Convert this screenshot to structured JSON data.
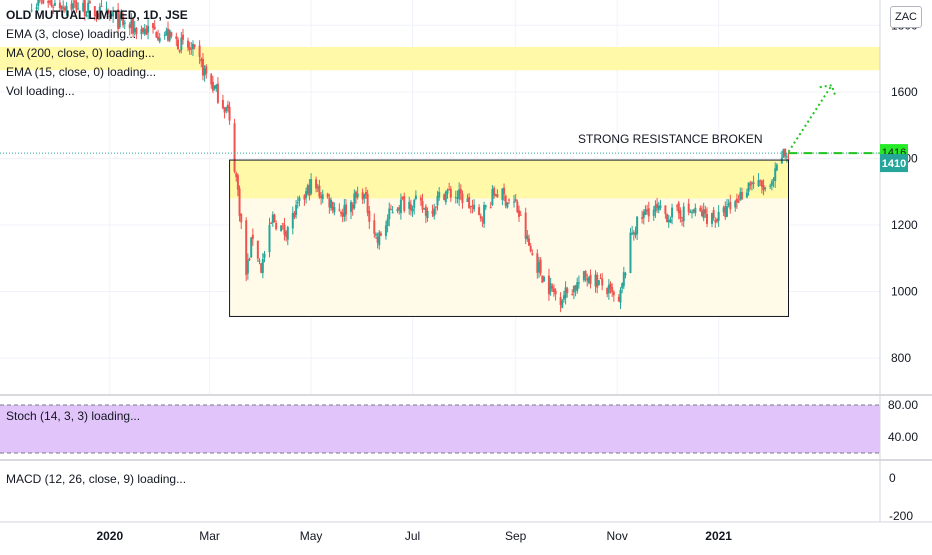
{
  "header": {
    "symbol_title": "OLD MUTUAL LIMITED, 1D, JSE",
    "currency": "ZAC"
  },
  "indicators": {
    "ema3": "EMA (3, close) loading...",
    "ma200": "MA (200, close, 0) loading...",
    "ema15": "EMA (15, close, 0) loading...",
    "vol": "Vol loading...",
    "stoch": "Stoch (14, 3, 3) loading...",
    "macd": "MACD (12, 26, close, 9) loading..."
  },
  "annotation": {
    "resistance_text": "STRONG RESISTANCE BROKEN"
  },
  "price_labels": {
    "resistance": "1416",
    "last": "1410"
  },
  "colors": {
    "up": "#26a69a",
    "down": "#ef5350",
    "highlight": "#fff9a8",
    "box_fill": "#fffbe8",
    "stoch_band": "#e1c4f9",
    "projection": "#1fc41f",
    "last_price_bg": "#26a69a",
    "resistance_label_bg": "#27ea27"
  },
  "chart_data": {
    "type": "candlestick",
    "title": "OLD MUTUAL LIMITED, 1D, JSE",
    "ylabel": "ZAC",
    "ylim": [
      710,
      1840
    ],
    "y_ticks": [
      800,
      1000,
      1200,
      1400,
      1600,
      1800
    ],
    "x_ticks": [
      {
        "label": "2020",
        "date": "2020-01-01"
      },
      {
        "label": "Mar",
        "date": "2020-03-01"
      },
      {
        "label": "May",
        "date": "2020-05-01"
      },
      {
        "label": "Jul",
        "date": "2020-07-01"
      },
      {
        "label": "Sep",
        "date": "2020-09-01"
      },
      {
        "label": "Nov",
        "date": "2020-11-01"
      },
      {
        "label": "2021",
        "date": "2021-01-01"
      }
    ],
    "x_range": [
      "2019-10-27",
      "2021-04-08"
    ],
    "price_series": [
      [
        "2019-11-15",
        1870
      ],
      [
        "2019-12-10",
        1860
      ],
      [
        "2019-12-30",
        1830
      ],
      [
        "2020-01-15",
        1790
      ],
      [
        "2020-02-01",
        1780
      ],
      [
        "2020-02-20",
        1720
      ],
      [
        "2020-03-05",
        1600
      ],
      [
        "2020-03-12",
        1540
      ],
      [
        "2020-03-18",
        1300
      ],
      [
        "2020-03-23",
        1050
      ],
      [
        "2020-03-27",
        1170
      ],
      [
        "2020-04-01",
        1070
      ],
      [
        "2020-04-08",
        1220
      ],
      [
        "2020-04-15",
        1180
      ],
      [
        "2020-04-23",
        1250
      ],
      [
        "2020-05-01",
        1320
      ],
      [
        "2020-05-10",
        1280
      ],
      [
        "2020-05-20",
        1240
      ],
      [
        "2020-06-01",
        1300
      ],
      [
        "2020-06-10",
        1150
      ],
      [
        "2020-06-20",
        1260
      ],
      [
        "2020-07-01",
        1270
      ],
      [
        "2020-07-10",
        1240
      ],
      [
        "2020-07-20",
        1300
      ],
      [
        "2020-08-01",
        1280
      ],
      [
        "2020-08-10",
        1220
      ],
      [
        "2020-08-20",
        1300
      ],
      [
        "2020-09-01",
        1260
      ],
      [
        "2020-09-10",
        1120
      ],
      [
        "2020-09-20",
        1020
      ],
      [
        "2020-09-27",
        980
      ],
      [
        "2020-10-05",
        1010
      ],
      [
        "2020-10-15",
        1050
      ],
      [
        "2020-10-25",
        1010
      ],
      [
        "2020-11-02",
        960
      ],
      [
        "2020-11-10",
        1180
      ],
      [
        "2020-11-20",
        1250
      ],
      [
        "2020-12-01",
        1230
      ],
      [
        "2020-12-15",
        1240
      ],
      [
        "2021-01-01",
        1220
      ],
      [
        "2021-01-10",
        1260
      ],
      [
        "2021-01-20",
        1330
      ],
      [
        "2021-02-01",
        1300
      ],
      [
        "2021-02-08",
        1410
      ]
    ],
    "resistance_zone": {
      "from": 1280,
      "to": 1395,
      "start": "2020-03-13",
      "end": "2021-02-12"
    },
    "range_box": {
      "top": 1395,
      "bottom": 925,
      "start": "2020-03-13",
      "end": "2021-02-12"
    },
    "top_highlight": {
      "from": 1665,
      "to": 1735
    },
    "resistance_line": 1416,
    "last_price": 1410,
    "projection": {
      "from": [
        "2021-02-12",
        1420
      ],
      "to": [
        "2021-03-10",
        1620
      ]
    },
    "stoch_panel": {
      "ticks": [
        80.0,
        40.0
      ],
      "band": [
        20,
        80
      ]
    },
    "macd_panel": {
      "ticks": [
        0,
        -200
      ]
    }
  }
}
